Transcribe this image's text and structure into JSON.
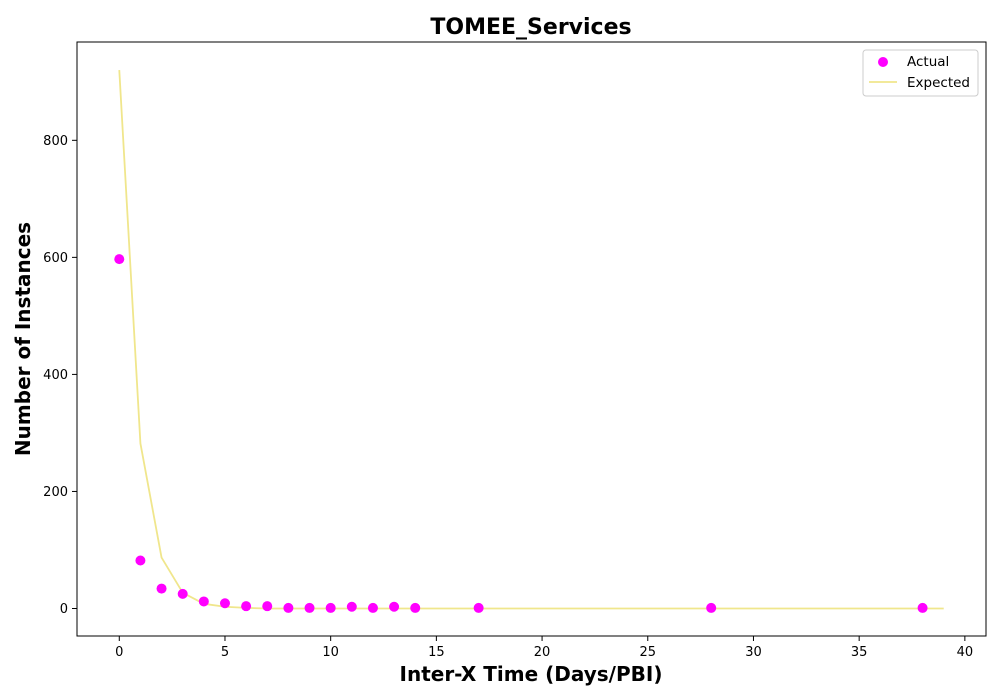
{
  "chart_data": {
    "type": "scatter",
    "title": "TOMEE_Services",
    "xlabel": "Inter-X Time (Days/PBI)",
    "ylabel": "Number of Instances",
    "xlim": [
      -2,
      41
    ],
    "ylim": [
      -47,
      968
    ],
    "xticks": [
      0,
      5,
      10,
      15,
      20,
      25,
      30,
      35,
      40
    ],
    "yticks": [
      0,
      200,
      400,
      600,
      800
    ],
    "grid": false,
    "legend_position": "top-right",
    "colors": {
      "actual": "#ff00ff",
      "expected": "#f0e68c"
    },
    "series": [
      {
        "name": "Actual",
        "kind": "scatter",
        "x": [
          0,
          1,
          2,
          3,
          4,
          5,
          6,
          7,
          8,
          9,
          10,
          11,
          12,
          13,
          14,
          17,
          28,
          38
        ],
        "y": [
          597,
          82,
          34,
          25,
          12,
          9,
          4,
          4,
          1,
          1,
          1,
          3,
          1,
          3,
          1,
          1,
          1,
          1
        ]
      },
      {
        "name": "Expected",
        "kind": "line",
        "x": [
          0,
          1,
          2,
          3,
          4,
          5,
          6,
          7,
          8,
          9,
          10,
          11,
          12,
          13,
          14,
          15,
          16,
          17,
          18,
          19,
          20,
          21,
          22,
          23,
          24,
          25,
          26,
          27,
          28,
          29,
          30,
          31,
          32,
          33,
          34,
          35,
          36,
          37,
          38,
          39
        ],
        "y": [
          920,
          282,
          87,
          27,
          8,
          3,
          1,
          0,
          0,
          0,
          0,
          0,
          0,
          0,
          0,
          0,
          0,
          0,
          0,
          0,
          0,
          0,
          0,
          0,
          0,
          0,
          0,
          0,
          0,
          0,
          0,
          0,
          0,
          0,
          0,
          0,
          0,
          0,
          0,
          0
        ]
      }
    ]
  }
}
